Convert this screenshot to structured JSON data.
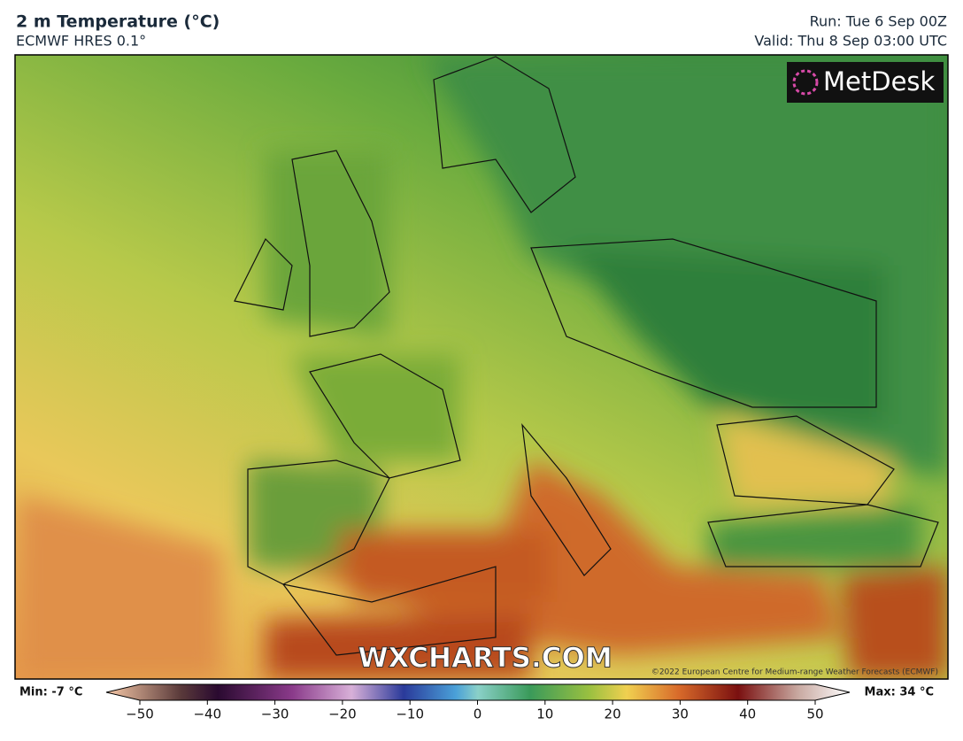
{
  "header": {
    "title": "2 m Temperature (°C)",
    "subtitle": "ECMWF HRES 0.1°",
    "run": "Run: Tue 6 Sep 00Z",
    "valid": "Valid: Thu 8 Sep 03:00 UTC"
  },
  "map": {
    "logo": "MetDesk",
    "watermark": "WXCHARTS.COM",
    "copyright": "©2022 European Centre for Medium-range Weather Forecasts (ECMWF)"
  },
  "colorbar": {
    "min_label": "Min: -7 °C",
    "max_label": "Max: 34 °C",
    "lim": [
      -50,
      50
    ],
    "ticks": [
      {
        "value": -50,
        "label": "−50"
      },
      {
        "value": -40,
        "label": "−40"
      },
      {
        "value": -30,
        "label": "−30"
      },
      {
        "value": -20,
        "label": "−20"
      },
      {
        "value": -10,
        "label": "−10"
      },
      0,
      10,
      20,
      30,
      40,
      50
    ]
  }
}
